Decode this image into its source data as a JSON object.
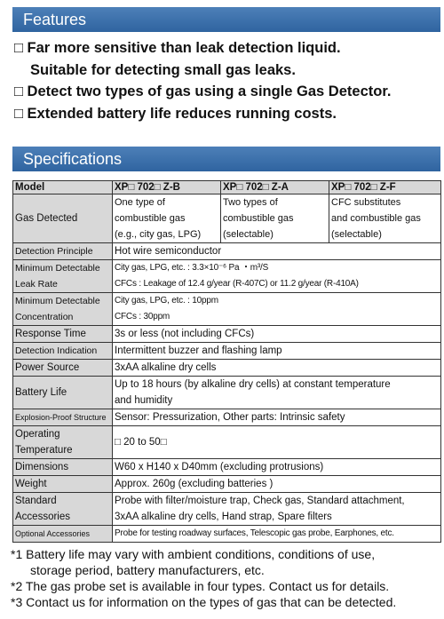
{
  "features": {
    "title": "Features",
    "items": [
      [
        "□ Far more sensitive than leak detection liquid.",
        "Suitable for detecting small gas leaks."
      ],
      [
        "□ Detect two types of gas using a single Gas Detector."
      ],
      [
        "□ Extended battery life reduces running costs."
      ]
    ]
  },
  "specs": {
    "title": "Specifications",
    "rows": [
      {
        "label": [
          "Model"
        ],
        "cells": [
          [
            "XP□ 702□ Z-B"
          ],
          [
            "XP□ 702□ Z-A"
          ],
          [
            "XP□ 702□ Z-F"
          ]
        ]
      },
      {
        "label": [
          "Gas Detected"
        ],
        "cells": [
          [
            "One type of",
            "combustible gas",
            "(e.g., city gas, LPG)"
          ],
          [
            "Two types of",
            "combustible gas",
            "(selectable)"
          ],
          [
            "CFC substitutes",
            "and combustible gas",
            "(selectable)"
          ]
        ]
      },
      {
        "label": [
          "Detection Principle"
        ],
        "cells": [
          [
            "Hot wire semiconductor"
          ]
        ]
      },
      {
        "label": [
          "Minimum Detectable",
          "Leak Rate"
        ],
        "cells": [
          [
            "City gas, LPG, etc. : 3.3×10⁻⁶ Pa ・m³/S",
            "CFCs : Leakage of 12.4 g/year (R-407C) or 11.2 g/year (R-410A)"
          ]
        ]
      },
      {
        "label": [
          "Minimum Detectable",
          "Concentration"
        ],
        "cells": [
          [
            "City gas, LPG, etc. : 10ppm",
            "CFCs : 30ppm"
          ]
        ]
      },
      {
        "label": [
          "Response Time"
        ],
        "cells": [
          [
            "3s or less (not including CFCs)"
          ]
        ]
      },
      {
        "label": [
          "Detection Indication"
        ],
        "cells": [
          [
            "Intermittent buzzer and flashing lamp"
          ]
        ]
      },
      {
        "label": [
          "Power Source"
        ],
        "cells": [
          [
            "3xAA alkaline dry cells"
          ]
        ]
      },
      {
        "label": [
          "Battery Life"
        ],
        "cells": [
          [
            "Up to 18 hours (by alkaline dry cells) at constant temperature",
            "and humidity"
          ]
        ]
      },
      {
        "label": [
          "Explosion-Proof Structure"
        ],
        "cells": [
          [
            "Sensor: Pressurization, Other parts: Intrinsic safety"
          ]
        ]
      },
      {
        "label": [
          "Operating",
          "Temperature"
        ],
        "cells": [
          [
            "□ 20 to 50□"
          ]
        ]
      },
      {
        "label": [
          "Dimensions"
        ],
        "cells": [
          [
            "W60 x H140 x D40mm (excluding protrusions)"
          ]
        ]
      },
      {
        "label": [
          "Weight"
        ],
        "cells": [
          [
            "Approx. 260g (excluding batteries )"
          ]
        ]
      },
      {
        "label": [
          "Standard",
          "Accessories"
        ],
        "cells": [
          [
            "Probe with filter/moisture trap, Check gas, Standard attachment,",
            "3xAA alkaline dry cells, Hand strap, Spare filters"
          ]
        ]
      },
      {
        "label": [
          "Optional Accessories"
        ],
        "cells": [
          [
            "Probe for testing roadway surfaces, Telescopic gas probe, Earphones, etc."
          ]
        ]
      }
    ]
  },
  "notes": [
    [
      "*1 Battery life may vary with ambient conditions, conditions of use,",
      "storage period, battery manufacturers, etc."
    ],
    [
      "*2 The gas probe set is available in four types. Contact us for details."
    ],
    [
      "*3 Contact us for information on the types of gas that can be detected."
    ]
  ]
}
